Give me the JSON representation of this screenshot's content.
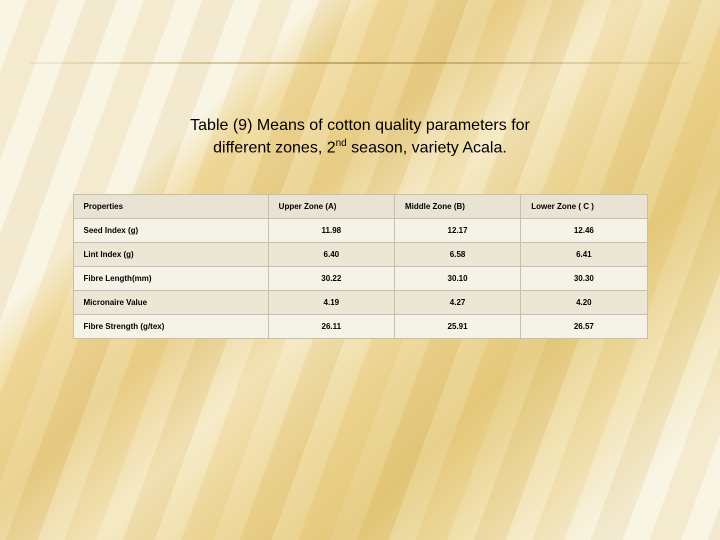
{
  "title_line1": "Table (9) Means of cotton quality parameters for",
  "title_line2_a": "different zones, 2",
  "title_sup": "nd",
  "title_line2_b": "  season, variety Acala.",
  "table": {
    "columns": [
      "Properties",
      "Upper Zone (A)",
      "Middle Zone (B)",
      "Lower Zone ( C )"
    ],
    "rows": [
      [
        "Seed Index (g)",
        "11.98",
        "12.17",
        "12.46"
      ],
      [
        "Lint Index (g)",
        "6.40",
        "6.58",
        "6.41"
      ],
      [
        "Fibre Length(mm)",
        "30.22",
        "30.10",
        "30.30"
      ],
      [
        "Micronaire Value",
        "4.19",
        "4.27",
        "4.20"
      ],
      [
        "Fibre Strength (g/tex)",
        "26.11",
        "25.91",
        "26.57"
      ]
    ],
    "header_bg": "#e9e3d3",
    "row_odd_bg": "#f5f2e8",
    "row_even_bg": "#ece6d4",
    "border_color": "#c8bfa8",
    "font_size_pt": 8
  }
}
